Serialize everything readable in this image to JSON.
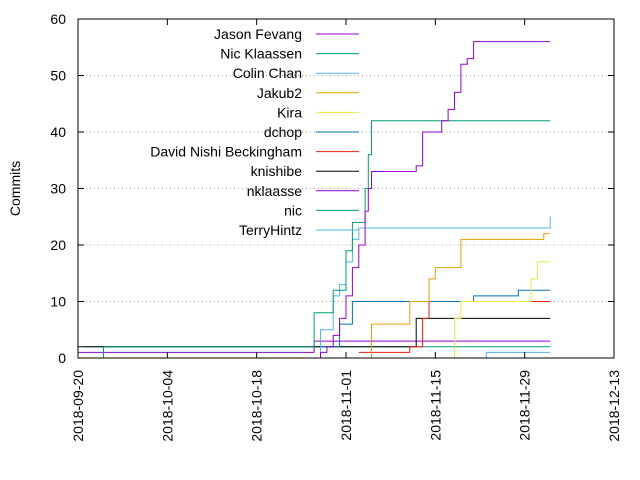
{
  "chart_data": {
    "type": "line",
    "title": "",
    "xlabel": "",
    "ylabel": "Commits",
    "x_is_date": true,
    "xlim": [
      "2018-09-20",
      "2018-12-13"
    ],
    "ylim": [
      0,
      60
    ],
    "x_ticks": [
      "2018-09-20",
      "2018-10-04",
      "2018-10-18",
      "2018-11-01",
      "2018-11-15",
      "2018-11-29",
      "2018-12-13"
    ],
    "y_ticks": [
      0,
      10,
      20,
      30,
      40,
      50,
      60
    ],
    "grid": "horizontal dotted",
    "legend_placement": "top-left",
    "series": [
      {
        "name": "Jason Fevang",
        "color": "#9400d3",
        "points": [
          [
            "2018-09-29",
            0
          ],
          [
            "2018-10-28",
            1
          ],
          [
            "2018-10-29",
            2
          ],
          [
            "2018-10-30",
            4
          ],
          [
            "2018-10-31",
            7
          ],
          [
            "2018-11-01",
            11
          ],
          [
            "2018-11-02",
            16
          ],
          [
            "2018-11-03",
            20
          ],
          [
            "2018-11-04",
            26
          ],
          [
            "2018-11-04T12:00",
            30
          ],
          [
            "2018-11-05",
            33
          ],
          [
            "2018-11-12",
            34
          ],
          [
            "2018-11-13",
            40
          ],
          [
            "2018-11-16",
            42
          ],
          [
            "2018-11-17",
            44
          ],
          [
            "2018-11-18",
            47
          ],
          [
            "2018-11-19",
            52
          ],
          [
            "2018-11-20",
            53
          ],
          [
            "2018-11-21",
            56
          ],
          [
            "2018-12-03",
            56
          ]
        ]
      },
      {
        "name": "Nic Klaassen",
        "color": "#009e73",
        "points": [
          [
            "2018-09-20",
            0
          ],
          [
            "2018-09-24",
            2
          ],
          [
            "2018-10-27",
            8
          ],
          [
            "2018-10-30",
            12
          ],
          [
            "2018-11-01",
            19
          ],
          [
            "2018-11-02",
            24
          ],
          [
            "2018-11-04",
            30
          ],
          [
            "2018-11-04T12:00",
            36
          ],
          [
            "2018-11-05",
            42
          ],
          [
            "2018-12-03",
            42
          ]
        ]
      },
      {
        "name": "Colin Chan",
        "color": "#56b4e9",
        "points": [
          [
            "2018-10-26",
            0
          ],
          [
            "2018-10-28",
            5
          ],
          [
            "2018-10-30",
            11
          ],
          [
            "2018-10-31",
            13
          ],
          [
            "2018-11-01",
            17
          ],
          [
            "2018-11-02",
            21
          ],
          [
            "2018-11-03",
            23
          ],
          [
            "2018-12-02",
            23
          ],
          [
            "2018-12-03",
            25
          ]
        ]
      },
      {
        "name": "Jakub2",
        "color": "#e69f00",
        "points": [
          [
            "2018-11-04",
            0
          ],
          [
            "2018-11-05",
            6
          ],
          [
            "2018-11-11",
            10
          ],
          [
            "2018-11-14",
            14
          ],
          [
            "2018-11-15",
            16
          ],
          [
            "2018-11-19",
            21
          ],
          [
            "2018-12-01",
            21
          ],
          [
            "2018-12-02",
            22
          ],
          [
            "2018-12-03",
            22
          ]
        ]
      },
      {
        "name": "Kira",
        "color": "#f0e442",
        "points": [
          [
            "2018-11-17",
            0
          ],
          [
            "2018-11-18",
            7
          ],
          [
            "2018-11-19",
            10
          ],
          [
            "2018-11-28",
            10
          ],
          [
            "2018-11-30",
            14
          ],
          [
            "2018-12-01",
            17
          ],
          [
            "2018-12-03",
            17
          ]
        ]
      },
      {
        "name": "dchop",
        "color": "#0072b2",
        "points": [
          [
            "2018-10-28",
            2
          ],
          [
            "2018-10-31",
            6
          ],
          [
            "2018-11-02",
            10
          ],
          [
            "2018-11-21",
            11
          ],
          [
            "2018-11-28",
            12
          ],
          [
            "2018-12-03",
            12
          ]
        ]
      },
      {
        "name": "David Nishi Beckingham",
        "color": "#e51e10",
        "points": [
          [
            "2018-11-03",
            1
          ],
          [
            "2018-11-11",
            2
          ],
          [
            "2018-11-13",
            7
          ],
          [
            "2018-11-14",
            10
          ],
          [
            "2018-12-03",
            10
          ]
        ]
      },
      {
        "name": "knishibe",
        "color": "#000000",
        "points": [
          [
            "2018-09-20",
            2
          ],
          [
            "2018-09-24",
            2
          ],
          [
            "2018-11-11",
            2
          ],
          [
            "2018-11-12",
            7
          ],
          [
            "2018-12-03",
            7
          ]
        ]
      },
      {
        "name": "nklaasse",
        "color": "#9400d3",
        "points": [
          [
            "2018-09-20",
            1
          ],
          [
            "2018-10-27",
            3
          ],
          [
            "2018-12-03",
            3
          ]
        ]
      },
      {
        "name": "nic",
        "color": "#009e73",
        "points": [
          [
            "2018-09-21",
            2
          ],
          [
            "2018-12-03",
            2
          ]
        ]
      },
      {
        "name": "TerryHintz",
        "color": "#56b4e9",
        "points": [
          [
            "2018-11-22",
            0
          ],
          [
            "2018-11-23",
            1
          ],
          [
            "2018-12-03",
            1
          ]
        ]
      }
    ]
  }
}
